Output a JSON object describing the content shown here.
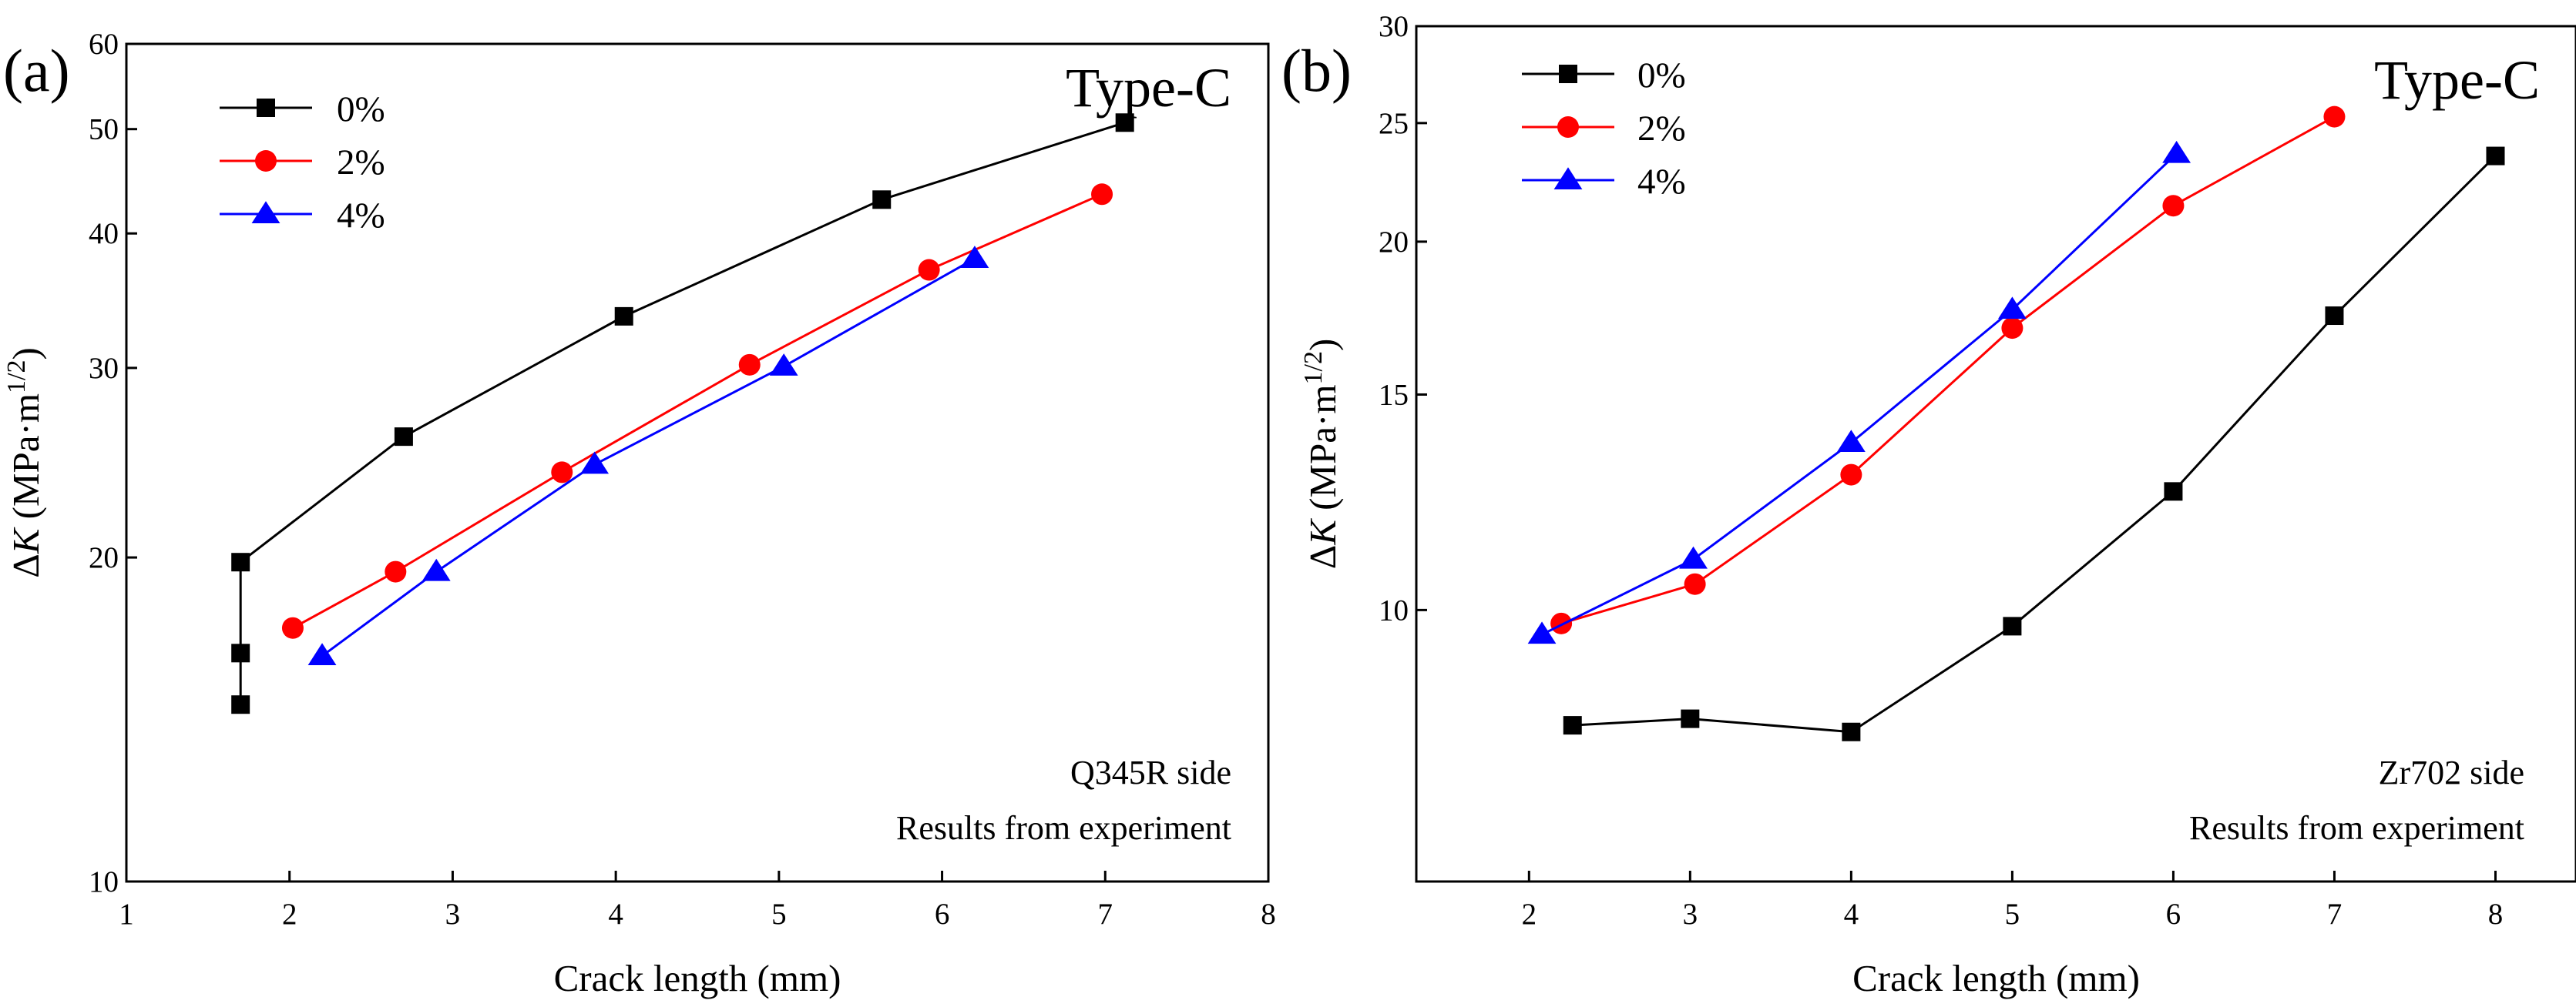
{
  "chart_data": [
    {
      "type": "line",
      "panel_label": "(a)",
      "title": "Type-C",
      "xlabel": "Crack length (mm)",
      "ylabel": {
        "delta": "Δ",
        "var": "K",
        "unit": " (MPa·m",
        "exp": "1/2",
        "close": ")"
      },
      "xlim": [
        1,
        8
      ],
      "ylim": [
        10,
        60
      ],
      "yscale": "log",
      "x_ticks": [
        1,
        2,
        3,
        4,
        5,
        6,
        7,
        8
      ],
      "y_ticks": [
        10,
        20,
        30,
        40,
        50,
        60
      ],
      "annotations": [
        "Q345R side",
        "Results from experiment"
      ],
      "legend_position": "top-left",
      "series": [
        {
          "name": "0%",
          "color": "#000000",
          "marker": "square",
          "x": [
            1.7,
            1.7,
            1.7,
            2.7,
            4.05,
            5.63,
            7.12
          ],
          "y": [
            14.6,
            16.3,
            19.8,
            25.9,
            33.5,
            43.0,
            50.7
          ]
        },
        {
          "name": "2%",
          "color": "#ff0000",
          "marker": "circle",
          "x": [
            2.02,
            2.65,
            3.67,
            4.82,
            5.92,
            6.98
          ],
          "y": [
            17.2,
            19.4,
            24.0,
            30.2,
            37.0,
            43.5
          ]
        },
        {
          "name": "4%",
          "color": "#0000ff",
          "marker": "triangle",
          "x": [
            2.2,
            2.9,
            3.87,
            5.03,
            6.2
          ],
          "y": [
            16.2,
            19.4,
            24.4,
            30.1,
            37.9
          ]
        }
      ]
    },
    {
      "type": "line",
      "panel_label": "(b)",
      "title": "Type-C",
      "xlabel": "Crack length (mm)",
      "ylabel": {
        "delta": "Δ",
        "var": "K",
        "unit": " (MPa·m",
        "exp": "1/2",
        "close": ")"
      },
      "xlim": [
        1.3,
        8.5
      ],
      "ylim": [
        6.0,
        30
      ],
      "yscale": "log",
      "x_ticks": [
        2,
        3,
        4,
        5,
        6,
        7,
        8
      ],
      "y_ticks": [
        10,
        15,
        20,
        25,
        30
      ],
      "annotations": [
        "Zr702 side",
        "Results from experiment"
      ],
      "legend_position": "top-left",
      "series": [
        {
          "name": "0%",
          "color": "#000000",
          "marker": "square",
          "x": [
            2.27,
            3.0,
            4.0,
            5.0,
            6.0,
            7.0,
            8.0
          ],
          "y": [
            8.05,
            8.15,
            7.95,
            9.7,
            12.5,
            17.4,
            23.5
          ]
        },
        {
          "name": "2%",
          "color": "#ff0000",
          "marker": "circle",
          "x": [
            2.2,
            3.03,
            4.0,
            5.0,
            6.0,
            7.0
          ],
          "y": [
            9.75,
            10.5,
            12.9,
            17.0,
            21.4,
            25.3
          ]
        },
        {
          "name": "4%",
          "color": "#0000ff",
          "marker": "triangle",
          "x": [
            2.08,
            3.02,
            4.0,
            5.0,
            6.02
          ],
          "y": [
            9.55,
            11.0,
            13.7,
            17.6,
            23.6
          ]
        }
      ]
    }
  ]
}
